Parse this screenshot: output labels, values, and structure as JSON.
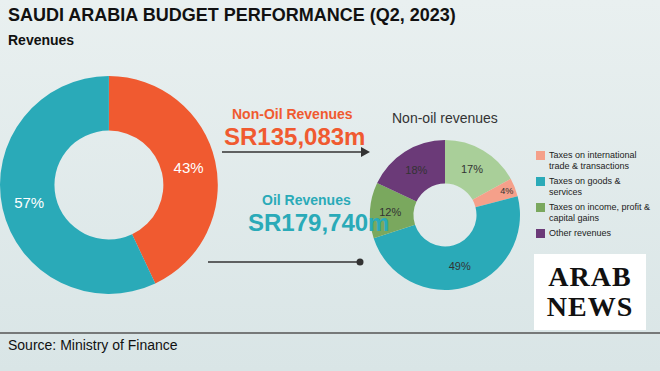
{
  "title": "SAUDI ARABIA BUDGET PERFORMANCE (Q2, 2023)",
  "source": "Source: Ministry of Finance",
  "logo": "ARAB NEWS",
  "chart_data": [
    {
      "type": "pie",
      "title": "Revenues",
      "categories": [
        "Non-Oil Revenues",
        "Oil Revenues"
      ],
      "values": [
        43,
        57
      ],
      "value_labels": [
        "43%",
        "57%"
      ],
      "amount_labels": [
        "SR135,083m",
        "SR179,740m"
      ],
      "colors": [
        "#f05a30",
        "#2aaab8"
      ],
      "data_labels": true
    },
    {
      "type": "pie",
      "title": "Non-oil revenues",
      "categories": [
        null,
        "Taxes on international trade & transactions",
        "Taxes on goods & services",
        "Taxes on income, profit & capital gains",
        "Other revenues"
      ],
      "values": [
        17,
        4,
        49,
        12,
        18
      ],
      "value_labels": [
        "17%",
        "4%",
        "49%",
        "12%",
        "18%"
      ],
      "colors": [
        "#a9cf99",
        "#f5a08a",
        "#2aaab8",
        "#7aa85e",
        "#6b3a78"
      ],
      "data_labels": true,
      "legend": "right"
    }
  ]
}
